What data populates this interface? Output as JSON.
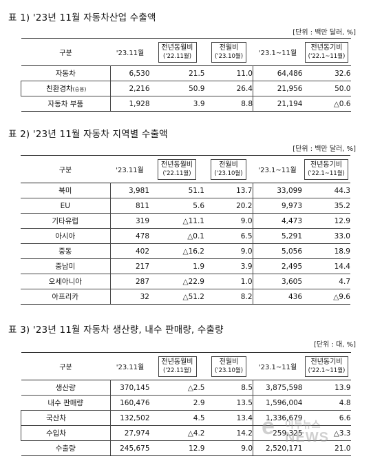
{
  "units": {
    "t1": "[단위 : 백만 달러, %]",
    "t3": "[단위 : 대, %]"
  },
  "header": {
    "category": "구분",
    "month": "'23.11월",
    "yoy": "전년동월비",
    "yoy_sub": "('22.11월)",
    "mom": "전월비",
    "mom_sub": "('23.10월)",
    "ytd": "'23.1~11월",
    "ytd_yoy": "전년동기비",
    "ytd_yoy_sub": "('22.1~11월)"
  },
  "tables": [
    {
      "title": "표 1) '23년 11월 자동차산업 수출액",
      "rows": [
        {
          "label": "자동차",
          "label_small": "",
          "month": "6,530",
          "yoy": "21.5",
          "mom": "11.0",
          "ytd": "64,486",
          "ytd_yoy": "32.6"
        },
        {
          "label": "친환경차",
          "label_small": "(승용)",
          "month": "2,216",
          "yoy": "50.9",
          "mom": "26.4",
          "ytd": "21,956",
          "ytd_yoy": "50.0"
        },
        {
          "label": "자동차 부품",
          "label_small": "",
          "month": "1,928",
          "yoy": "3.9",
          "mom": "8.8",
          "ytd": "21,194",
          "ytd_yoy": "△0.6"
        }
      ]
    },
    {
      "title": "표 2) '23년 11월 자동차 지역별 수출액",
      "rows": [
        {
          "label": "북미",
          "month": "3,981",
          "yoy": "51.1",
          "mom": "13.7",
          "ytd": "33,099",
          "ytd_yoy": "44.3"
        },
        {
          "label": "EU",
          "month": "811",
          "yoy": "5.6",
          "mom": "20.2",
          "ytd": "9,973",
          "ytd_yoy": "35.2"
        },
        {
          "label": "기타유럽",
          "month": "319",
          "yoy": "△11.1",
          "mom": "9.0",
          "ytd": "4,473",
          "ytd_yoy": "12.9"
        },
        {
          "label": "아시아",
          "month": "478",
          "yoy": "△0.1",
          "mom": "6.5",
          "ytd": "5,291",
          "ytd_yoy": "33.0"
        },
        {
          "label": "중동",
          "month": "402",
          "yoy": "△16.2",
          "mom": "9.0",
          "ytd": "5,056",
          "ytd_yoy": "18.9"
        },
        {
          "label": "중남미",
          "month": "217",
          "yoy": "1.9",
          "mom": "3.9",
          "ytd": "2,495",
          "ytd_yoy": "14.4"
        },
        {
          "label": "오세아니아",
          "month": "287",
          "yoy": "△22.9",
          "mom": "1.0",
          "ytd": "3,605",
          "ytd_yoy": "4.7"
        },
        {
          "label": "아프리카",
          "month": "32",
          "yoy": "△51.2",
          "mom": "8.2",
          "ytd": "436",
          "ytd_yoy": "△9.6"
        }
      ]
    },
    {
      "title": "표 3) '23년 11월 자동차 생산량, 내수 판매량, 수출량",
      "rows": [
        {
          "label": "생산량",
          "month": "370,145",
          "yoy": "△2.5",
          "mom": "8.5",
          "ytd": "3,875,598",
          "ytd_yoy": "13.9"
        },
        {
          "label": "내수 판매량",
          "month": "160,476",
          "yoy": "2.9",
          "mom": "13.5",
          "ytd": "1,596,004",
          "ytd_yoy": "4.8"
        },
        {
          "label": "국산차",
          "month": "132,502",
          "yoy": "4.5",
          "mom": "13.4",
          "ytd": "1,336,679",
          "ytd_yoy": "6.6"
        },
        {
          "label": "수입차",
          "month": "27,974",
          "yoy": "△4.2",
          "mom": "14.2",
          "ytd": "259,325",
          "ytd_yoy": "△3.3"
        },
        {
          "label": "수출량",
          "month": "245,675",
          "yoy": "12.9",
          "mom": "9.0",
          "ytd": "2,520,171",
          "ytd_yoy": "21.0"
        }
      ]
    }
  ],
  "watermark": {
    "line1": "이투뉴스",
    "line2": "NEWS"
  }
}
